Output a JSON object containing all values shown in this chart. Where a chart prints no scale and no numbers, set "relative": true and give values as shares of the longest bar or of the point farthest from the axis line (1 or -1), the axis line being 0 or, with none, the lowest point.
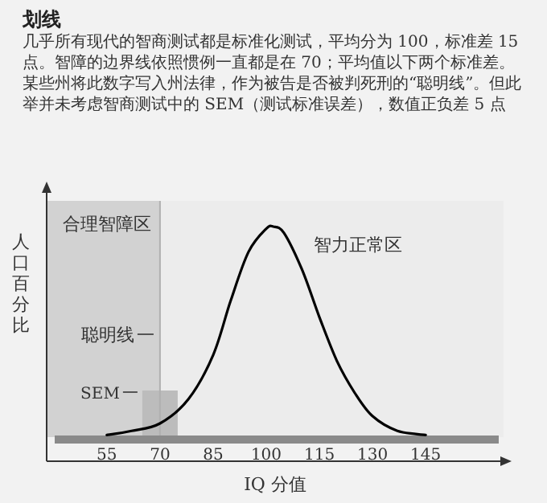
{
  "chart_data": {
    "type": "line",
    "title": "划线",
    "subtitle": "几乎所有现代的智商测试都是标准化测试，平均分为 100，标准差 15 点。智障的边界线依照惯例一直都是在 70；平均值以下两个标准差。某些州将此数字写入州法律，作为被告是否被判死刑的“聪明线”。但此举并未考虑智商测试中的 SEM（测试标准误差），数值正负差 5 点",
    "xlabel": "IQ 分值",
    "ylabel": "人口百分比",
    "relative": true,
    "x": [
      55,
      62,
      70,
      78,
      85,
      90,
      95,
      100,
      102,
      105,
      110,
      115,
      120,
      125,
      130,
      137,
      145
    ],
    "series": [
      {
        "color": "#000000",
        "values": [
          0.01,
          0.03,
          0.065,
          0.18,
          0.39,
          0.65,
          0.88,
          0.99,
          1,
          0.97,
          0.8,
          0.57,
          0.36,
          0.21,
          0.1,
          0.03,
          0.01
        ]
      }
    ],
    "xlim": [
      38,
      167
    ],
    "xticks": [
      55,
      70,
      85,
      100,
      115,
      130,
      145
    ],
    "bands": [
      {
        "axis": "x",
        "from": 38,
        "to": 70,
        "label": "合理智障区",
        "color": "#d2d2d2"
      },
      {
        "axis": "x",
        "from": 70,
        "to": 167,
        "label": "智力正常区",
        "color": "#ececec"
      },
      {
        "axis": "x",
        "from": 65,
        "to": 75,
        "label": "SEM",
        "color": "#bcbcbc"
      }
    ],
    "ref_lines": [
      {
        "axis": "x",
        "value": 70,
        "label": "聪明线",
        "color": "#b0b0b0"
      }
    ],
    "line_style": "solid"
  }
}
